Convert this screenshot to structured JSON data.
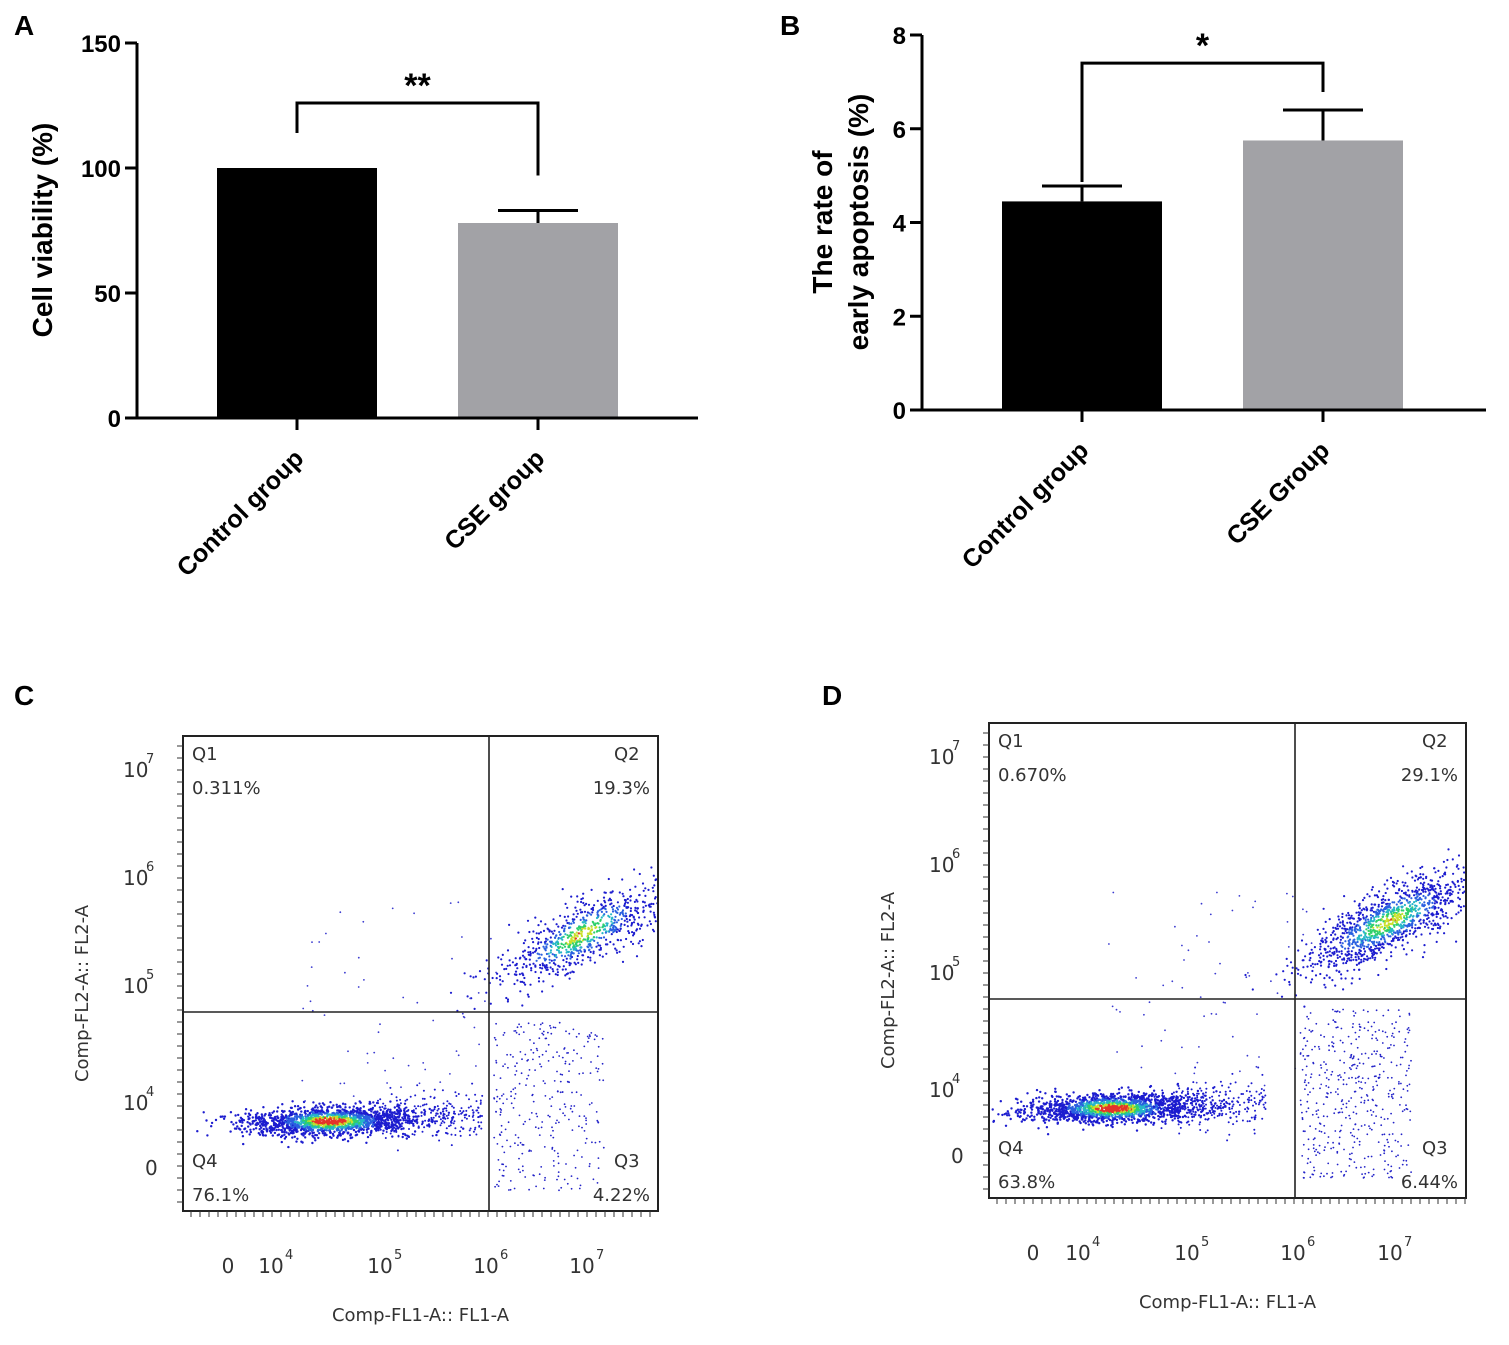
{
  "chart_data": [
    {
      "panel": "A",
      "type": "bar",
      "categories": [
        "Control group",
        "CSE group"
      ],
      "values": [
        100,
        78
      ],
      "errors": [
        0,
        5
      ],
      "colors": [
        "#000000",
        "#a2a2a6"
      ],
      "ylabel": "Cell viability (%)",
      "ylim": [
        0,
        150
      ],
      "yticks": [
        "0",
        "50",
        "100",
        "150"
      ],
      "ytick_values": [
        0,
        50,
        100,
        150
      ],
      "significance": "**",
      "bracket_level": 126
    },
    {
      "panel": "B",
      "type": "bar",
      "categories": [
        "Control group",
        "CSE Group"
      ],
      "values": [
        4.45,
        5.75
      ],
      "errors": [
        0.33,
        0.65
      ],
      "colors": [
        "#000000",
        "#a2a2a6"
      ],
      "ylabel_line1": "The rate of",
      "ylabel_line2": "early apoptosis (%)",
      "ylim": [
        0,
        8
      ],
      "yticks": [
        "0",
        "2",
        "4",
        "6",
        "8"
      ],
      "ytick_values": [
        0,
        2,
        4,
        6,
        8
      ],
      "significance": "*",
      "bracket_level": 7.4
    },
    {
      "panel": "C",
      "type": "scatter",
      "xlabel": "Comp-FL1-A:: FL1-A",
      "ylabel": "Comp-FL2-A:: FL2-A",
      "xticks": {
        "zero": "0",
        "base": "10",
        "exponents": [
          "4",
          "5",
          "6",
          "7"
        ]
      },
      "yticks": {
        "zero": "0",
        "base": "10",
        "exponents": [
          "4",
          "5",
          "6",
          "7"
        ]
      },
      "quadrants": {
        "Q1": {
          "label": "Q1",
          "percent": "0.311%"
        },
        "Q2": {
          "label": "Q2",
          "percent": "19.3%"
        },
        "Q3": {
          "label": "Q3",
          "percent": "4.22%"
        },
        "Q4": {
          "label": "Q4",
          "percent": "76.1%"
        }
      }
    },
    {
      "panel": "D",
      "type": "scatter",
      "xlabel": "Comp-FL1-A:: FL1-A",
      "ylabel": "Comp-FL2-A:: FL2-A",
      "xticks": {
        "zero": "0",
        "base": "10",
        "exponents": [
          "4",
          "5",
          "6",
          "7"
        ]
      },
      "yticks": {
        "zero": "0",
        "base": "10",
        "exponents": [
          "4",
          "5",
          "6",
          "7"
        ]
      },
      "quadrants": {
        "Q1": {
          "label": "Q1",
          "percent": "0.670%"
        },
        "Q2": {
          "label": "Q2",
          "percent": "29.1%"
        },
        "Q3": {
          "label": "Q3",
          "percent": "6.44%"
        },
        "Q4": {
          "label": "Q4",
          "percent": "63.8%"
        }
      }
    }
  ]
}
